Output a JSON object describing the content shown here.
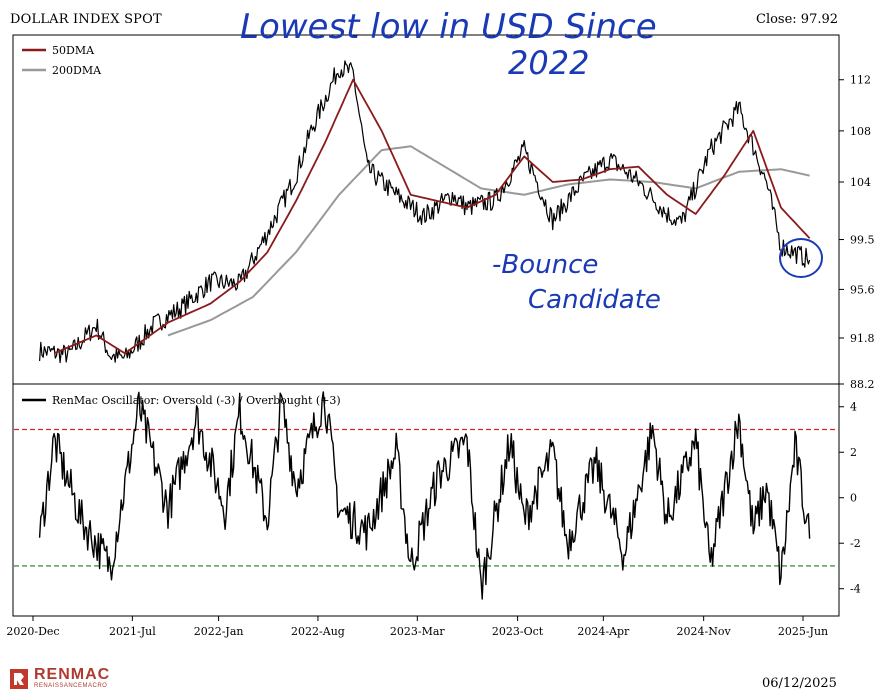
{
  "header": {
    "title": "DOLLAR INDEX SPOT",
    "close": "Close: 97.92"
  },
  "footer": {
    "date": "06/12/2025",
    "brand": "RENMAC",
    "brand_sub": "RENAISSANCEMACRO"
  },
  "annotations": {
    "headline_line1": "Lowest low in USD Since",
    "headline_line2": "2022",
    "note_line1": "-Bounce",
    "note_line2": "Candidate"
  },
  "colors": {
    "price": "#000000",
    "dma50": "#8b1a1a",
    "dma200": "#999999",
    "overbought": "#d62728",
    "oversold": "#1a7f1a",
    "ink": "#1a3ab5"
  },
  "chart_data": [
    {
      "type": "line",
      "title": "DOLLAR INDEX SPOT",
      "x_tick_labels": [
        "2020-Dec",
        "2021-Jul",
        "2022-Jan",
        "2022-Aug",
        "2023-Mar",
        "2023-Oct",
        "2024-Apr",
        "2024-Nov",
        "2025-Jun"
      ],
      "y_tick_labels": [
        "88.2",
        "91.8",
        "95.6",
        "99.5",
        "104",
        "108",
        "112"
      ],
      "ylim": [
        88.2,
        115.5
      ],
      "legend": [
        "50DMA",
        "200DMA"
      ],
      "legend_position": "top-left",
      "series": [
        {
          "name": "Price",
          "dates": [
            "2020-12",
            "2021-02",
            "2021-04",
            "2021-05",
            "2021-06",
            "2021-08",
            "2021-10",
            "2021-12",
            "2022-02",
            "2022-04",
            "2022-06",
            "2022-07",
            "2022-09",
            "2022-10",
            "2022-11",
            "2023-01",
            "2023-03",
            "2023-05",
            "2023-06",
            "2023-08",
            "2023-10",
            "2023-12",
            "2024-02",
            "2024-04",
            "2024-06",
            "2024-08",
            "2024-09",
            "2024-11",
            "2025-01",
            "2025-03",
            "2025-04",
            "2025-06"
          ],
          "values": [
            90.8,
            90.5,
            92.8,
            90.4,
            90.2,
            92.8,
            94.2,
            96.2,
            96.0,
            100.0,
            104.5,
            107.8,
            113.0,
            112.5,
            105.0,
            103.0,
            101.3,
            103.0,
            102.0,
            102.6,
            106.5,
            101.0,
            104.0,
            105.8,
            104.0,
            101.5,
            100.8,
            106.5,
            109.8,
            104.0,
            99.0,
            97.9
          ]
        },
        {
          "name": "50DMA",
          "dates": [
            "2021-01",
            "2021-04",
            "2021-06",
            "2021-09",
            "2021-12",
            "2022-02",
            "2022-04",
            "2022-06",
            "2022-08",
            "2022-10",
            "2022-12",
            "2023-02",
            "2023-04",
            "2023-06",
            "2023-08",
            "2023-10",
            "2023-12",
            "2024-02",
            "2024-04",
            "2024-06",
            "2024-08",
            "2024-10",
            "2024-12",
            "2025-02",
            "2025-04",
            "2025-06"
          ],
          "values": [
            90.6,
            92.0,
            90.6,
            93.0,
            94.5,
            96.2,
            98.5,
            102.5,
            107.0,
            112.0,
            108.0,
            103.0,
            102.5,
            102.0,
            103.0,
            106.0,
            104.0,
            104.2,
            105.0,
            105.2,
            103.0,
            101.5,
            104.5,
            108.0,
            102.0,
            99.6
          ]
        },
        {
          "name": "200DMA",
          "dates": [
            "2021-09",
            "2021-12",
            "2022-03",
            "2022-06",
            "2022-09",
            "2022-12",
            "2023-02",
            "2023-04",
            "2023-07",
            "2023-10",
            "2024-01",
            "2024-04",
            "2024-07",
            "2024-10",
            "2025-01",
            "2025-04",
            "2025-06"
          ],
          "values": [
            92.0,
            93.2,
            95.0,
            98.5,
            103.0,
            106.5,
            106.8,
            105.5,
            103.5,
            103.0,
            103.8,
            104.2,
            104.0,
            103.5,
            104.8,
            105.0,
            104.5
          ]
        }
      ]
    },
    {
      "type": "line",
      "legend": [
        "RenMac Oscillator: Oversold (-3) / Overbought (+3)"
      ],
      "legend_position": "top-left",
      "y_tick_labels": [
        "-4",
        "-2",
        "0",
        "2",
        "4"
      ],
      "ylim": [
        -5.2,
        5.0
      ],
      "reference_lines": [
        3,
        -3
      ],
      "series": [
        {
          "name": "RenMac Oscillator: Oversold (-3) / Overbought (+3)",
          "dates": [
            "2020-12",
            "2021-01",
            "2021-03",
            "2021-05",
            "2021-06",
            "2021-07",
            "2021-09",
            "2021-11",
            "2022-01",
            "2022-02",
            "2022-04",
            "2022-05",
            "2022-06",
            "2022-08",
            "2022-09",
            "2022-11",
            "2023-01",
            "2023-02",
            "2023-04",
            "2023-06",
            "2023-07",
            "2023-09",
            "2023-10",
            "2023-12",
            "2024-01",
            "2024-03",
            "2024-05",
            "2024-07",
            "2024-08",
            "2024-10",
            "2024-11",
            "2025-01",
            "2025-02",
            "2025-03",
            "2025-04",
            "2025-05",
            "2025-06"
          ],
          "values": [
            -1.8,
            2.5,
            -1.0,
            -3.0,
            0.5,
            4.0,
            -0.5,
            3.5,
            -0.5,
            3.8,
            -1.0,
            4.2,
            0.5,
            4.5,
            -0.5,
            -1.5,
            2.0,
            -3.0,
            1.0,
            2.5,
            -4.0,
            2.5,
            -1.0,
            2.0,
            -2.0,
            1.5,
            -2.5,
            3.0,
            -1.0,
            2.5,
            -3.0,
            3.5,
            -1.5,
            0.5,
            -3.5,
            2.2,
            -1.8
          ]
        }
      ]
    }
  ]
}
